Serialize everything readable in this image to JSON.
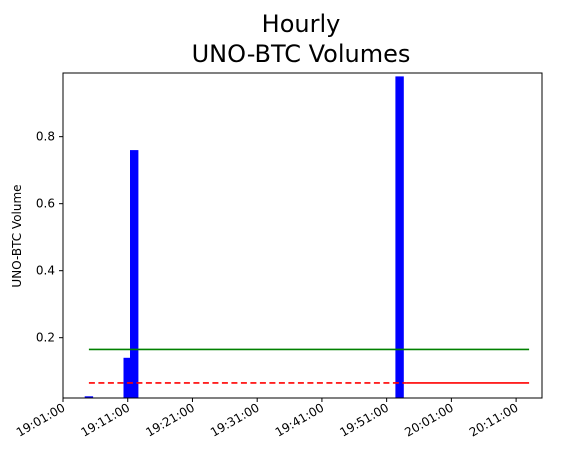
{
  "chart_data": {
    "type": "bar",
    "title": [
      "Hourly",
      "UNO-BTC Volumes"
    ],
    "xlabel": "",
    "ylabel": "UNO-BTC Volume",
    "x_unit": "time",
    "xlim": [
      "19:01:00",
      "20:15:00"
    ],
    "ylim": [
      0.02,
      0.99
    ],
    "x_ticks": [
      "19:01:00",
      "19:11:00",
      "19:21:00",
      "19:31:00",
      "19:41:00",
      "19:51:00",
      "20:01:00",
      "20:11:00"
    ],
    "y_ticks": [
      0.2,
      0.4,
      0.6,
      0.8
    ],
    "grid": false,
    "bar_color": "#0000ff",
    "bars": [
      {
        "x": "19:05:00",
        "value": 0.025
      },
      {
        "x": "19:11:00",
        "value": 0.14
      },
      {
        "x": "19:12:00",
        "value": 0.76
      },
      {
        "x": "19:53:00",
        "value": 0.98
      }
    ],
    "lines": [
      {
        "color": "#008000",
        "style": "solid",
        "x_start": "19:05:00",
        "x_end": "20:13:00",
        "value": 0.165
      },
      {
        "color": "#ff0000",
        "style": "dashed",
        "x_start": "19:05:00",
        "x_end": "19:54:00",
        "value": 0.065
      },
      {
        "color": "#ff0000",
        "style": "solid",
        "x_start": "19:54:00",
        "x_end": "20:13:00",
        "value": 0.065
      }
    ]
  }
}
